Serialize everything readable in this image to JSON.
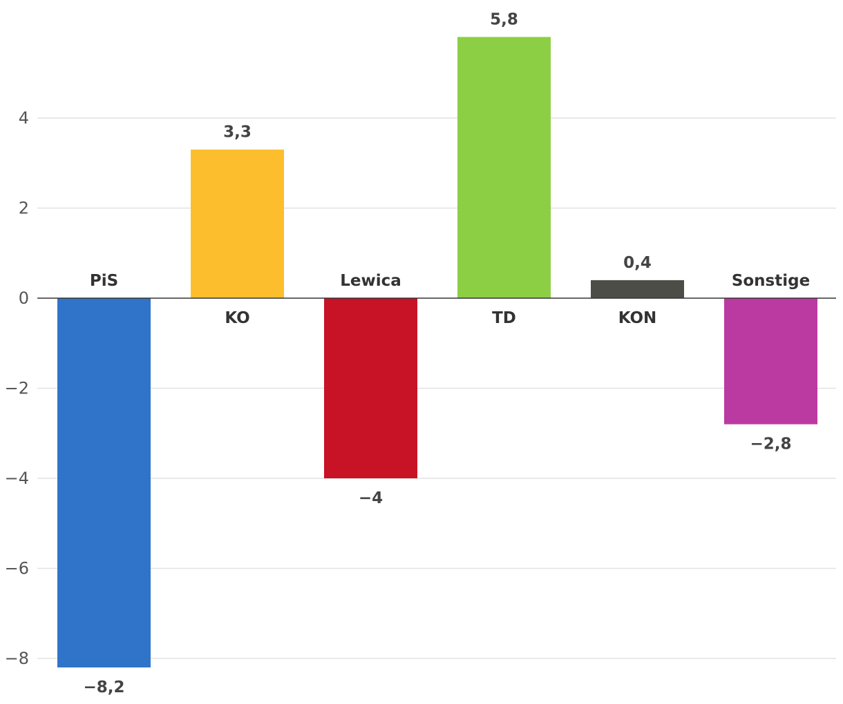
{
  "chart_data": {
    "type": "bar",
    "title": "",
    "xlabel": "",
    "ylabel": "",
    "ylim": [
      -8.2,
      5.8
    ],
    "yticks": [
      4,
      2,
      0,
      -2,
      -4,
      -6,
      -8
    ],
    "ytick_labels": [
      "4",
      "2",
      "0",
      "−2",
      "−4",
      "−6",
      "−8"
    ],
    "grid": true,
    "categories": [
      "PiS",
      "KO",
      "Lewica",
      "TD",
      "KON",
      "Sonstige"
    ],
    "values": [
      -8.2,
      3.3,
      -4,
      5.8,
      0.4,
      -2.8
    ],
    "value_labels": [
      "−8,2",
      "3,3",
      "−4",
      "5,8",
      "0,4",
      "−2,8"
    ],
    "colors": [
      "#3074c9",
      "#fdbe2d",
      "#c81226",
      "#8ccf44",
      "#4d4d48",
      "#bb3aa1"
    ]
  }
}
